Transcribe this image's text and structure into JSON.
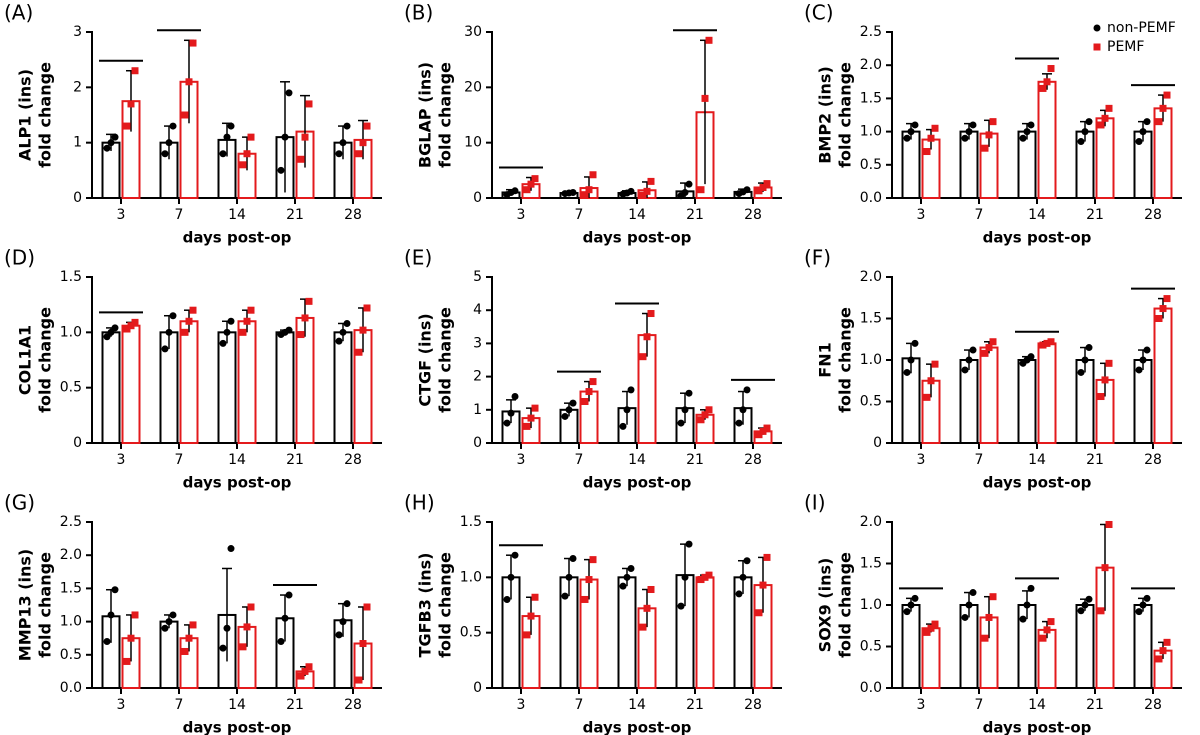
{
  "chart_data": [
    {
      "type": "bar",
      "title": "(A)",
      "ylabel": [
        "ALP1 (ins)",
        "fold change"
      ],
      "xlabel": "days post-op",
      "categories": [
        "3",
        "7",
        "14",
        "21",
        "28"
      ],
      "ylim": [
        0,
        3
      ],
      "yticks": [
        0,
        1,
        2,
        3
      ],
      "significant": [
        true,
        true,
        false,
        false,
        false
      ],
      "series": [
        {
          "color": "#000000",
          "values": [
            1.0,
            1.0,
            1.05,
            1.1,
            1.0
          ],
          "errors": [
            0.15,
            0.3,
            0.3,
            1.0,
            0.3
          ],
          "points": [
            [
              0.9,
              1.0,
              1.1
            ],
            [
              0.8,
              1.0,
              1.3
            ],
            [
              0.8,
              1.1,
              1.3
            ],
            [
              0.5,
              1.1,
              1.9
            ],
            [
              0.8,
              1.0,
              1.3
            ]
          ]
        },
        {
          "color": "#e31a1c",
          "values": [
            1.75,
            2.1,
            0.8,
            1.2,
            1.05
          ],
          "errors": [
            0.55,
            0.75,
            0.3,
            0.65,
            0.35
          ],
          "points": [
            [
              1.3,
              1.7,
              2.3
            ],
            [
              1.5,
              2.1,
              2.8
            ],
            [
              0.6,
              0.8,
              1.1
            ],
            [
              0.7,
              1.1,
              1.7
            ],
            [
              0.8,
              1.0,
              1.3
            ]
          ]
        }
      ]
    },
    {
      "type": "bar",
      "title": "(B)",
      "ylabel": [
        "BGLAP (ins)",
        "fold change"
      ],
      "xlabel": "days post-op",
      "categories": [
        "3",
        "7",
        "14",
        "21",
        "28"
      ],
      "ylim": [
        0,
        30
      ],
      "yticks": [
        0,
        10,
        20,
        30
      ],
      "significant": [
        true,
        false,
        false,
        true,
        false
      ],
      "series": [
        {
          "color": "#000000",
          "values": [
            1.0,
            0.9,
            0.9,
            1.2,
            1.1
          ],
          "errors": [
            0.5,
            0.3,
            0.4,
            1.5,
            0.5
          ],
          "points": [
            [
              0.6,
              1.0,
              1.3
            ],
            [
              0.8,
              0.9,
              1.0
            ],
            [
              0.7,
              0.9,
              1.2
            ],
            [
              0.4,
              1.0,
              2.5
            ],
            [
              0.8,
              1.1,
              1.5
            ]
          ]
        },
        {
          "color": "#e31a1c",
          "values": [
            2.5,
            1.8,
            1.4,
            15.5,
            1.9
          ],
          "errors": [
            1.2,
            2,
            1.5,
            13,
            0.8
          ],
          "points": [
            [
              1.5,
              2.5,
              3.5
            ],
            [
              0.6,
              1.5,
              4.2
            ],
            [
              0.5,
              1.2,
              3.0
            ],
            [
              1.5,
              18,
              28.5
            ],
            [
              1.3,
              1.9,
              2.6
            ]
          ]
        }
      ]
    },
    {
      "type": "bar",
      "title": "(C)",
      "ylabel": [
        "BMP2 (ins)",
        "fold change"
      ],
      "xlabel": "days post-op",
      "categories": [
        "3",
        "7",
        "14",
        "21",
        "28"
      ],
      "ylim": [
        0,
        2.5
      ],
      "yticks": [
        {
          "value": 0,
          "label": "0.0"
        },
        0.5,
        {
          "value": 1,
          "label": "1.0"
        },
        1.5,
        {
          "value": 2,
          "label": "2.0"
        },
        2.5
      ],
      "significant": [
        false,
        false,
        true,
        false,
        true
      ],
      "legend": "upper right",
      "series": [
        {
          "name": "non-PEMF",
          "color": "#000000",
          "values": [
            1.0,
            1.0,
            1.0,
            1.0,
            1.0
          ],
          "errors": [
            0.12,
            0.12,
            0.12,
            0.15,
            0.15
          ],
          "points": [
            [
              0.9,
              1.0,
              1.1
            ],
            [
              0.9,
              1.0,
              1.1
            ],
            [
              0.9,
              1.0,
              1.1
            ],
            [
              0.85,
              1.0,
              1.15
            ],
            [
              0.85,
              1.0,
              1.15
            ]
          ]
        },
        {
          "name": "PEMF",
          "color": "#e31a1c",
          "values": [
            0.88,
            0.97,
            1.75,
            1.2,
            1.35
          ],
          "errors": [
            0.15,
            0.2,
            0.12,
            0.12,
            0.2
          ],
          "points": [
            [
              0.7,
              0.9,
              1.05
            ],
            [
              0.75,
              0.95,
              1.15
            ],
            [
              1.65,
              1.75,
              1.95
            ],
            [
              1.1,
              1.2,
              1.35
            ],
            [
              1.15,
              1.35,
              1.55
            ]
          ]
        }
      ]
    },
    {
      "type": "bar",
      "title": "(D)",
      "ylabel": [
        "COL1A1",
        "fold change"
      ],
      "xlabel": "days post-op",
      "categories": [
        "3",
        "7",
        "14",
        "21",
        "28"
      ],
      "ylim": [
        0,
        1.5
      ],
      "yticks": [
        0,
        0.5,
        {
          "value": 1,
          "label": "1.0"
        },
        1.5
      ],
      "significant": [
        true,
        false,
        false,
        false,
        false
      ],
      "series": [
        {
          "color": "#000000",
          "values": [
            1.0,
            1.0,
            1.0,
            1.0,
            1.0
          ],
          "errors": [
            0.04,
            0.15,
            0.1,
            0.02,
            0.08
          ],
          "points": [
            [
              0.96,
              1.0,
              1.04
            ],
            [
              0.85,
              1.0,
              1.15
            ],
            [
              0.9,
              1.0,
              1.1
            ],
            [
              0.98,
              1.0,
              1.02
            ],
            [
              0.92,
              1.0,
              1.08
            ]
          ]
        },
        {
          "color": "#e31a1c",
          "values": [
            1.06,
            1.1,
            1.1,
            1.13,
            1.02
          ],
          "errors": [
            0.03,
            0.1,
            0.1,
            0.17,
            0.2
          ],
          "points": [
            [
              1.03,
              1.06,
              1.09
            ],
            [
              1.0,
              1.1,
              1.2
            ],
            [
              1.0,
              1.1,
              1.2
            ],
            [
              0.98,
              1.13,
              1.28
            ],
            [
              0.82,
              1.02,
              1.22
            ]
          ]
        }
      ]
    },
    {
      "type": "bar",
      "title": "(E)",
      "ylabel": [
        "CTGF (ins)",
        "fold change"
      ],
      "xlabel": "days post-op",
      "categories": [
        "3",
        "7",
        "14",
        "21",
        "28"
      ],
      "ylim": [
        0,
        5
      ],
      "yticks": [
        0,
        1,
        2,
        3,
        4,
        5
      ],
      "significant": [
        false,
        true,
        true,
        false,
        true
      ],
      "series": [
        {
          "color": "#000000",
          "values": [
            0.95,
            1.0,
            1.05,
            1.05,
            1.05
          ],
          "errors": [
            0.35,
            0.2,
            0.5,
            0.45,
            0.5
          ],
          "points": [
            [
              0.6,
              0.9,
              1.4
            ],
            [
              0.8,
              1.0,
              1.2
            ],
            [
              0.5,
              1.0,
              1.6
            ],
            [
              0.6,
              1.0,
              1.5
            ],
            [
              0.6,
              1.0,
              1.6
            ]
          ]
        },
        {
          "color": "#e31a1c",
          "values": [
            0.75,
            1.55,
            3.25,
            0.85,
            0.35
          ],
          "errors": [
            0.3,
            0.3,
            0.65,
            0.15,
            0.1
          ],
          "points": [
            [
              0.5,
              0.75,
              1.05
            ],
            [
              1.25,
              1.55,
              1.85
            ],
            [
              2.6,
              3.2,
              3.9
            ],
            [
              0.7,
              0.85,
              1.0
            ],
            [
              0.25,
              0.35,
              0.45
            ]
          ]
        }
      ]
    },
    {
      "type": "bar",
      "title": "(F)",
      "ylabel": [
        "FN1",
        "fold change"
      ],
      "xlabel": "days post-op",
      "categories": [
        "3",
        "7",
        "14",
        "21",
        "28"
      ],
      "ylim": [
        0,
        2
      ],
      "yticks": [
        0,
        0.5,
        {
          "value": 1,
          "label": "1.0"
        },
        1.5,
        {
          "value": 2,
          "label": "2.0"
        }
      ],
      "significant": [
        false,
        false,
        true,
        false,
        true
      ],
      "series": [
        {
          "color": "#000000",
          "values": [
            1.02,
            1.0,
            1.0,
            1.0,
            1.0
          ],
          "errors": [
            0.18,
            0.12,
            0.04,
            0.15,
            0.12
          ],
          "points": [
            [
              0.85,
              1.0,
              1.2
            ],
            [
              0.88,
              1.0,
              1.12
            ],
            [
              0.96,
              1.0,
              1.04
            ],
            [
              0.85,
              1.0,
              1.15
            ],
            [
              0.88,
              1.0,
              1.12
            ]
          ]
        },
        {
          "color": "#e31a1c",
          "values": [
            0.75,
            1.15,
            1.2,
            0.76,
            1.62
          ],
          "errors": [
            0.2,
            0.07,
            0.02,
            0.2,
            0.12
          ],
          "points": [
            [
              0.55,
              0.75,
              0.95
            ],
            [
              1.08,
              1.15,
              1.22
            ],
            [
              1.18,
              1.2,
              1.22
            ],
            [
              0.56,
              0.76,
              0.96
            ],
            [
              1.5,
              1.62,
              1.74
            ]
          ]
        }
      ]
    },
    {
      "type": "bar",
      "title": "(G)",
      "ylabel": [
        "MMP13 (ins)",
        "fold change"
      ],
      "xlabel": "days post-op",
      "categories": [
        "3",
        "7",
        "14",
        "21",
        "28"
      ],
      "ylim": [
        0,
        2.5
      ],
      "yticks": [
        {
          "value": 0,
          "label": "0.0"
        },
        0.5,
        {
          "value": 1,
          "label": "1.0"
        },
        1.5,
        {
          "value": 2,
          "label": "2.0"
        },
        2.5
      ],
      "significant": [
        false,
        false,
        false,
        true,
        false
      ],
      "series": [
        {
          "color": "#000000",
          "values": [
            1.08,
            1.0,
            1.1,
            1.05,
            1.02
          ],
          "errors": [
            0.4,
            0.1,
            0.7,
            0.35,
            0.25
          ],
          "points": [
            [
              0.7,
              1.1,
              1.48
            ],
            [
              0.9,
              1.0,
              1.1
            ],
            [
              0.6,
              0.9,
              2.1
            ],
            [
              0.7,
              1.05,
              1.4
            ],
            [
              0.8,
              1.0,
              1.27
            ]
          ]
        },
        {
          "color": "#e31a1c",
          "values": [
            0.75,
            0.75,
            0.92,
            0.25,
            0.67
          ],
          "errors": [
            0.35,
            0.2,
            0.3,
            0.07,
            0.55
          ],
          "points": [
            [
              0.4,
              0.75,
              1.1
            ],
            [
              0.55,
              0.75,
              0.95
            ],
            [
              0.62,
              0.92,
              1.22
            ],
            [
              0.18,
              0.25,
              0.32
            ],
            [
              0.12,
              0.67,
              1.22
            ]
          ]
        }
      ]
    },
    {
      "type": "bar",
      "title": "(H)",
      "ylabel": [
        "TGFB3 (ins)",
        "fold change"
      ],
      "xlabel": "days post-op",
      "categories": [
        "3",
        "7",
        "14",
        "21",
        "28"
      ],
      "ylim": [
        0,
        1.5
      ],
      "yticks": [
        0,
        0.5,
        {
          "value": 1,
          "label": "1.0"
        },
        1.5
      ],
      "significant": [
        true,
        false,
        false,
        false,
        false
      ],
      "series": [
        {
          "color": "#000000",
          "values": [
            1.0,
            1.0,
            1.0,
            1.02,
            1.0
          ],
          "errors": [
            0.2,
            0.17,
            0.08,
            0.28,
            0.15
          ],
          "points": [
            [
              0.8,
              1.0,
              1.2
            ],
            [
              0.83,
              1.0,
              1.17
            ],
            [
              0.92,
              1.0,
              1.08
            ],
            [
              0.74,
              1.0,
              1.3
            ],
            [
              0.85,
              1.0,
              1.15
            ]
          ]
        },
        {
          "color": "#e31a1c",
          "values": [
            0.65,
            0.98,
            0.72,
            1.0,
            0.93
          ],
          "errors": [
            0.17,
            0.18,
            0.17,
            0.02,
            0.25
          ],
          "points": [
            [
              0.48,
              0.65,
              0.82
            ],
            [
              0.8,
              0.98,
              1.16
            ],
            [
              0.55,
              0.72,
              0.89
            ],
            [
              0.98,
              1.0,
              1.02
            ],
            [
              0.68,
              0.93,
              1.18
            ]
          ]
        }
      ]
    },
    {
      "type": "bar",
      "title": "(I)",
      "ylabel": [
        "SOX9 (ins)",
        "fold change"
      ],
      "xlabel": "days post-op",
      "categories": [
        "3",
        "7",
        "14",
        "21",
        "28"
      ],
      "ylim": [
        0,
        2
      ],
      "yticks": [
        {
          "value": 0,
          "label": "0.0"
        },
        0.5,
        {
          "value": 1,
          "label": "1.0"
        },
        1.5,
        {
          "value": 2,
          "label": "2.0"
        }
      ],
      "significant": [
        true,
        false,
        true,
        false,
        true
      ],
      "series": [
        {
          "color": "#000000",
          "values": [
            1.0,
            1.0,
            1.0,
            1.0,
            1.0
          ],
          "errors": [
            0.08,
            0.15,
            0.17,
            0.07,
            0.08
          ],
          "points": [
            [
              0.92,
              1.0,
              1.08
            ],
            [
              0.85,
              1.0,
              1.15
            ],
            [
              0.83,
              1.0,
              1.2
            ],
            [
              0.93,
              1.0,
              1.07
            ],
            [
              0.92,
              1.0,
              1.08
            ]
          ]
        },
        {
          "color": "#e31a1c",
          "values": [
            0.72,
            0.85,
            0.7,
            1.45,
            0.45
          ],
          "errors": [
            0.05,
            0.25,
            0.1,
            0.52,
            0.1
          ],
          "points": [
            [
              0.67,
              0.72,
              0.77
            ],
            [
              0.6,
              0.85,
              1.1
            ],
            [
              0.6,
              0.7,
              0.8
            ],
            [
              0.93,
              1.45,
              1.97
            ],
            [
              0.35,
              0.45,
              0.55
            ]
          ]
        }
      ]
    }
  ]
}
